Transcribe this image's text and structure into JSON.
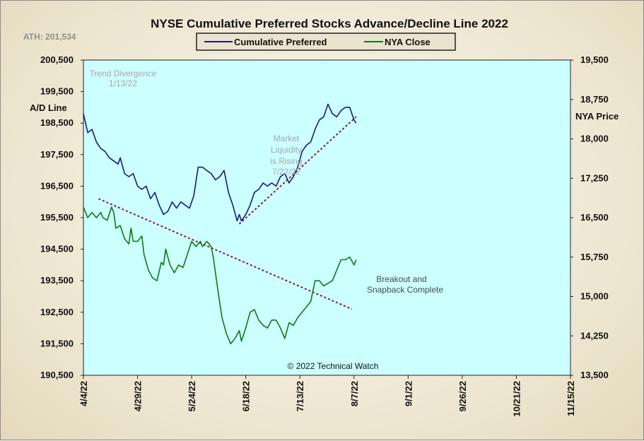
{
  "chart_data": {
    "type": "line",
    "title": "NYSE Cumulative  Preferred Stocks Advance/Decline  Line  2022",
    "ath_label": "ATH: 201,534",
    "left_axis": {
      "label": "A/D Line",
      "ylim": [
        190500,
        200500
      ],
      "ticks": [
        "200,500",
        "199,500",
        "198,500",
        "197,500",
        "196,500",
        "195,500",
        "194,500",
        "193,500",
        "192,500",
        "191,500",
        "190,500"
      ]
    },
    "right_axis": {
      "label": "NYA Price",
      "ylim": [
        13500,
        19500
      ],
      "ticks": [
        "19,500",
        "18,750",
        "18,000",
        "17,250",
        "16,500",
        "15,750",
        "15,000",
        "14,250",
        "13,500"
      ]
    },
    "x_axis": {
      "ticks": [
        "4/4/22",
        "4/29/22",
        "5/24/22",
        "6/18/22",
        "7/13/22",
        "8/7/22",
        "9/1/22",
        "9/26/22",
        "10/21/22",
        "11/15/22"
      ]
    },
    "legend": {
      "placement": "top-center",
      "entries": [
        "Cumulative Preferred",
        "NYA Close"
      ]
    },
    "colors": {
      "cumulative_preferred": "#1a1a80",
      "nya_close": "#0f7a0f",
      "trendline": "#8b1a3a",
      "plot_background": "#ccffff"
    },
    "annotations": {
      "trend_divergence_1": "Trend  Divergence",
      "trend_divergence_2": "1/13/22",
      "liquidity_1": "Market",
      "liquidity_2": "Liquidity",
      "liquidity_3": "is Rising",
      "liquidity_4": "7/22/22",
      "breakout_1": "Breakout and",
      "breakout_2": "Snapback Complete",
      "copyright": "© 2022 Technical Watch"
    },
    "series": [
      {
        "name": "Cumulative Preferred",
        "axis": "left",
        "points": [
          [
            0,
            198800
          ],
          [
            2,
            198200
          ],
          [
            4,
            198300
          ],
          [
            6,
            197900
          ],
          [
            8,
            197700
          ],
          [
            10,
            197600
          ],
          [
            12,
            197400
          ],
          [
            14,
            197300
          ],
          [
            16,
            197200
          ],
          [
            17,
            197400
          ],
          [
            19,
            196900
          ],
          [
            21,
            196800
          ],
          [
            23,
            196900
          ],
          [
            25,
            196500
          ],
          [
            27,
            196400
          ],
          [
            29,
            196500
          ],
          [
            31,
            196100
          ],
          [
            33,
            196300
          ],
          [
            35,
            195900
          ],
          [
            37,
            195600
          ],
          [
            39,
            195700
          ],
          [
            41,
            196000
          ],
          [
            43,
            195800
          ],
          [
            45,
            196000
          ],
          [
            47,
            195900
          ],
          [
            49,
            195800
          ],
          [
            51,
            196200
          ],
          [
            53,
            197100
          ],
          [
            55,
            197100
          ],
          [
            57,
            197000
          ],
          [
            59,
            196900
          ],
          [
            61,
            196700
          ],
          [
            63,
            196800
          ],
          [
            65,
            197000
          ],
          [
            67,
            196300
          ],
          [
            69,
            195900
          ],
          [
            71,
            195400
          ],
          [
            72,
            195600
          ],
          [
            73,
            195400
          ],
          [
            75,
            195600
          ],
          [
            77,
            195900
          ],
          [
            79,
            196300
          ],
          [
            81,
            196400
          ],
          [
            83,
            196600
          ],
          [
            85,
            196500
          ],
          [
            87,
            196600
          ],
          [
            89,
            196500
          ],
          [
            91,
            196800
          ],
          [
            93,
            196900
          ],
          [
            95,
            196600
          ],
          [
            97,
            196800
          ],
          [
            99,
            197100
          ],
          [
            101,
            197600
          ],
          [
            103,
            197800
          ],
          [
            105,
            197900
          ],
          [
            107,
            198300
          ],
          [
            109,
            198600
          ],
          [
            111,
            198700
          ],
          [
            113,
            199100
          ],
          [
            115,
            198800
          ],
          [
            117,
            198700
          ],
          [
            119,
            198900
          ],
          [
            121,
            199000
          ],
          [
            123,
            199000
          ],
          [
            125,
            198600
          ],
          [
            126,
            198500
          ]
        ]
      },
      {
        "name": "NYA Close",
        "axis": "right",
        "points": [
          [
            0,
            16700
          ],
          [
            2,
            16500
          ],
          [
            4,
            16600
          ],
          [
            6,
            16500
          ],
          [
            8,
            16600
          ],
          [
            9,
            16500
          ],
          [
            11,
            16450
          ],
          [
            13,
            16700
          ],
          [
            14,
            16600
          ],
          [
            15,
            16300
          ],
          [
            17,
            16350
          ],
          [
            19,
            16100
          ],
          [
            21,
            16000
          ],
          [
            22,
            16300
          ],
          [
            23,
            16050
          ],
          [
            25,
            16050
          ],
          [
            27,
            16150
          ],
          [
            28,
            15800
          ],
          [
            30,
            15500
          ],
          [
            32,
            15350
          ],
          [
            34,
            15300
          ],
          [
            36,
            15650
          ],
          [
            37,
            15600
          ],
          [
            38,
            15900
          ],
          [
            40,
            15600
          ],
          [
            42,
            15450
          ],
          [
            44,
            15600
          ],
          [
            46,
            15550
          ],
          [
            48,
            15800
          ],
          [
            50,
            16050
          ],
          [
            52,
            15950
          ],
          [
            54,
            16050
          ],
          [
            55,
            15950
          ],
          [
            57,
            16050
          ],
          [
            58,
            16000
          ],
          [
            59,
            15950
          ],
          [
            60,
            15750
          ],
          [
            62,
            15150
          ],
          [
            64,
            14600
          ],
          [
            66,
            14300
          ],
          [
            68,
            14100
          ],
          [
            70,
            14200
          ],
          [
            72,
            14350
          ],
          [
            73,
            14150
          ],
          [
            75,
            14400
          ],
          [
            77,
            14700
          ],
          [
            79,
            14750
          ],
          [
            81,
            14550
          ],
          [
            83,
            14450
          ],
          [
            85,
            14400
          ],
          [
            87,
            14550
          ],
          [
            89,
            14550
          ],
          [
            91,
            14400
          ],
          [
            93,
            14200
          ],
          [
            95,
            14500
          ],
          [
            97,
            14450
          ],
          [
            99,
            14600
          ],
          [
            101,
            14700
          ],
          [
            103,
            14800
          ],
          [
            105,
            14900
          ],
          [
            107,
            15300
          ],
          [
            109,
            15300
          ],
          [
            111,
            15200
          ],
          [
            113,
            15250
          ],
          [
            115,
            15300
          ],
          [
            117,
            15500
          ],
          [
            119,
            15700
          ],
          [
            121,
            15700
          ],
          [
            123,
            15750
          ],
          [
            125,
            15600
          ],
          [
            126,
            15700
          ]
        ]
      }
    ],
    "trendlines": [
      {
        "name": "support-trendline",
        "points": [
          [
            72,
            195300
          ],
          [
            126,
            198700
          ]
        ],
        "axis": "left"
      },
      {
        "name": "resistance-trendline",
        "points": [
          [
            7,
            196100
          ],
          [
            124,
            192600
          ]
        ],
        "axis": "left"
      }
    ]
  }
}
